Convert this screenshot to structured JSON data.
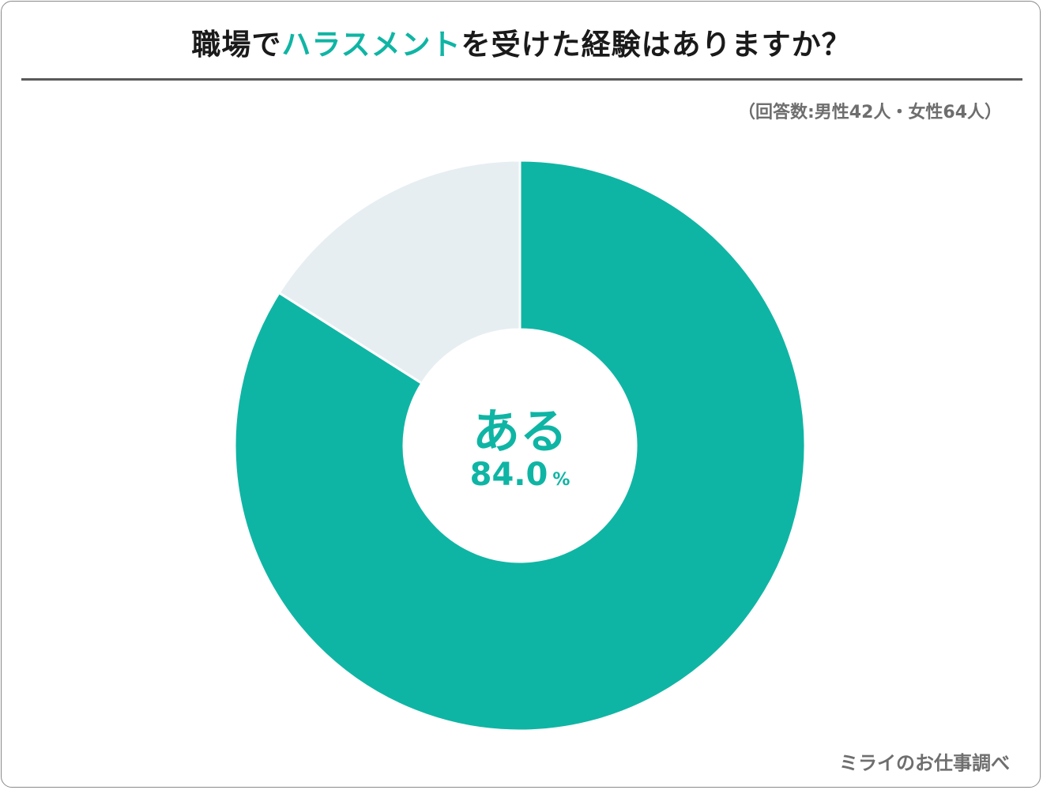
{
  "title": {
    "prefix": "職場で",
    "highlight": "ハラスメント",
    "suffix": "を受けた経験はありますか？"
  },
  "respondents_note": "（回答数:男性42人・女性64人）",
  "source": "ミライのお仕事調べ",
  "center": {
    "label": "ある",
    "value": "84.0",
    "unit": "%"
  },
  "colors": {
    "accent": "#0fb5a4",
    "other": "#e6eef2",
    "separator": "#ffffff"
  },
  "chart_data": {
    "type": "pie",
    "style": "donut",
    "title": "職場でハラスメントを受けた経験はありますか？",
    "categories": [
      "ある",
      ""
    ],
    "values": [
      84.0,
      16.0
    ],
    "unit": "%",
    "start_angle": "12 o'clock",
    "direction": "clockwise",
    "legend": "none"
  }
}
